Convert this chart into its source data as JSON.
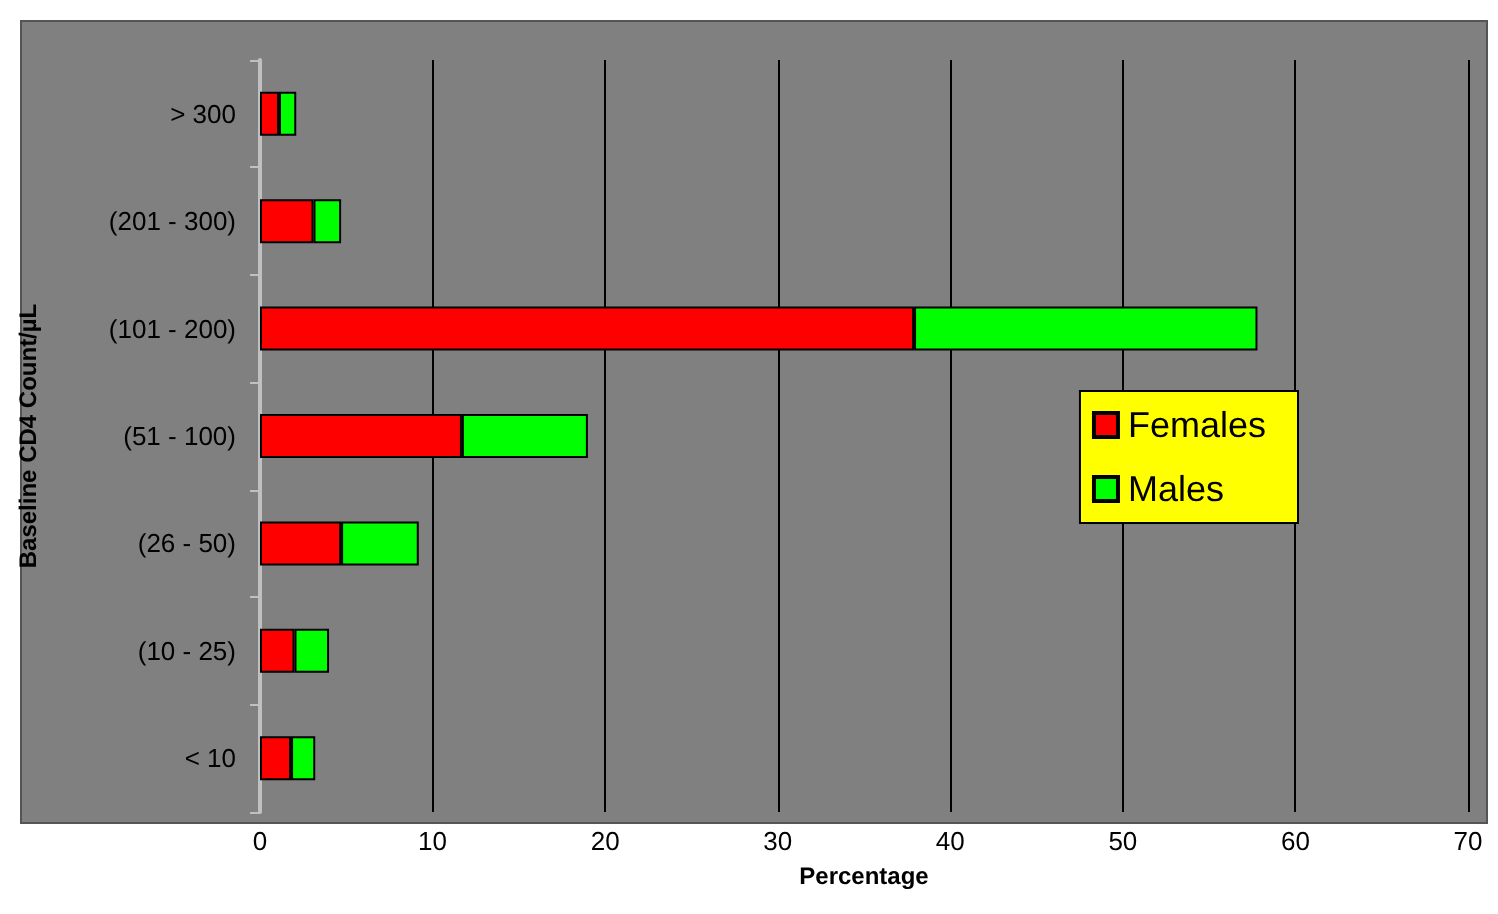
{
  "chart_data": {
    "type": "bar",
    "orientation": "horizontal",
    "stacked": true,
    "xlabel": "Percentage",
    "ylabel": "Baseline CD4 Count/µL",
    "categories": [
      "> 300",
      "(201 - 300)",
      "(101 - 200)",
      "(51 - 100)",
      "(26 - 50)",
      "(10 - 25)",
      "< 10"
    ],
    "series": [
      {
        "name": "Females",
        "color": "#ff0000",
        "values": [
          1.1,
          3.1,
          37.9,
          11.7,
          4.7,
          2.0,
          1.8
        ]
      },
      {
        "name": "Males",
        "color": "#00ff00",
        "values": [
          1.0,
          1.6,
          19.9,
          7.3,
          4.5,
          2.0,
          1.4
        ]
      }
    ],
    "xlim": [
      0,
      70
    ],
    "xticks": [
      0,
      10,
      20,
      30,
      40,
      50,
      60,
      70
    ],
    "grid": "x",
    "legend": "right"
  }
}
